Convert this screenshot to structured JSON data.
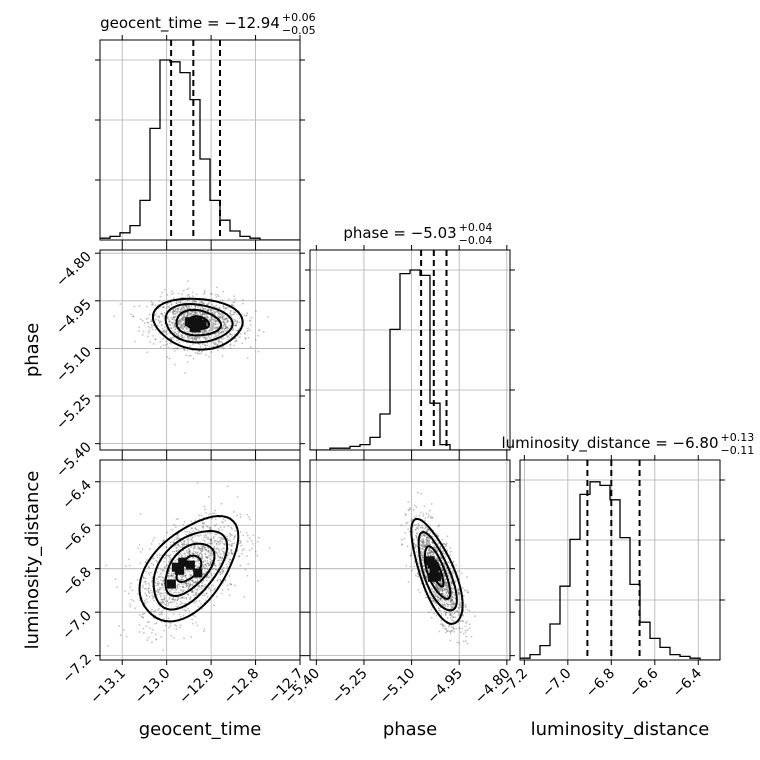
{
  "chart_data": {
    "type": "scatter",
    "kind": "corner-plot",
    "parameters": [
      {
        "name": "geocent_time",
        "label": "geocent_time",
        "range": [
          -13.15,
          -12.7
        ],
        "ticks": [
          -13.1,
          -13.0,
          -12.9,
          -12.8,
          -12.7
        ],
        "tick_labels": [
          "−13.1",
          "−13.0",
          "−12.9",
          "−12.8",
          "−12.7"
        ],
        "title": "geocent_time = −12.94",
        "title_upper": "+0.06",
        "title_lower": "−0.05",
        "quantiles": [
          -12.99,
          -12.94,
          -12.88
        ],
        "hist_edges_start": -13.15,
        "hist_bin_width": 0.0225,
        "hist_counts": [
          1,
          2,
          4,
          8,
          22,
          62,
          100,
          99,
          93,
          78,
          45,
          22,
          11,
          5,
          2,
          1,
          0,
          0,
          0,
          0
        ]
      },
      {
        "name": "phase",
        "label": "phase",
        "range": [
          -5.42,
          -4.79
        ],
        "ticks": [
          -5.4,
          -5.25,
          -5.1,
          -4.95,
          -4.8
        ],
        "tick_labels": [
          "−5.40",
          "−5.25",
          "−5.10",
          "−4.95",
          "−4.80"
        ],
        "title": "phase = −5.03",
        "title_upper": "+0.04",
        "title_lower": "−0.04",
        "quantiles": [
          -5.07,
          -5.03,
          -4.99
        ],
        "hist_edges_start": -5.42,
        "hist_bin_width": 0.0315,
        "hist_counts": [
          0,
          0,
          1,
          1,
          2,
          3,
          7,
          20,
          67,
          98,
          100,
          97,
          26,
          3,
          0,
          0,
          0,
          0,
          0,
          0
        ]
      },
      {
        "name": "luminosity_distance",
        "label": "luminosity_distance",
        "range": [
          -7.22,
          -6.3
        ],
        "ticks": [
          -7.2,
          -7.0,
          -6.8,
          -6.6,
          -6.4
        ],
        "tick_labels": [
          "−7.2",
          "−7.0",
          "−6.8",
          "−6.6",
          "−6.4"
        ],
        "title": "luminosity_distance = −6.80",
        "title_upper": "+0.13",
        "title_lower": "−0.11",
        "quantiles": [
          -6.91,
          -6.8,
          -6.67
        ],
        "hist_edges_start": -7.22,
        "hist_bin_width": 0.046,
        "hist_counts": [
          1,
          3,
          8,
          20,
          41,
          67,
          92,
          99,
          97,
          89,
          68,
          42,
          21,
          12,
          7,
          3,
          2,
          1,
          0,
          0
        ]
      }
    ],
    "hist_ylim": [
      0,
      100
    ],
    "joint": [
      {
        "x": "geocent_time",
        "y": "phase",
        "center": [
          -12.93,
          -5.02
        ],
        "sigma": [
          0.05,
          0.04
        ],
        "rho": -0.1
      },
      {
        "x": "geocent_time",
        "y": "luminosity_distance",
        "center": [
          -12.95,
          -6.8
        ],
        "sigma": [
          0.055,
          0.12
        ],
        "rho": 0.5
      },
      {
        "x": "phase",
        "y": "luminosity_distance",
        "center": [
          -5.02,
          -6.82
        ],
        "sigma": [
          0.04,
          0.12
        ],
        "rho": -0.7
      }
    ],
    "contour_levels_sigma": [
      0.5,
      1.0,
      1.5,
      2.0
    ],
    "grid": true,
    "legend": "none"
  }
}
